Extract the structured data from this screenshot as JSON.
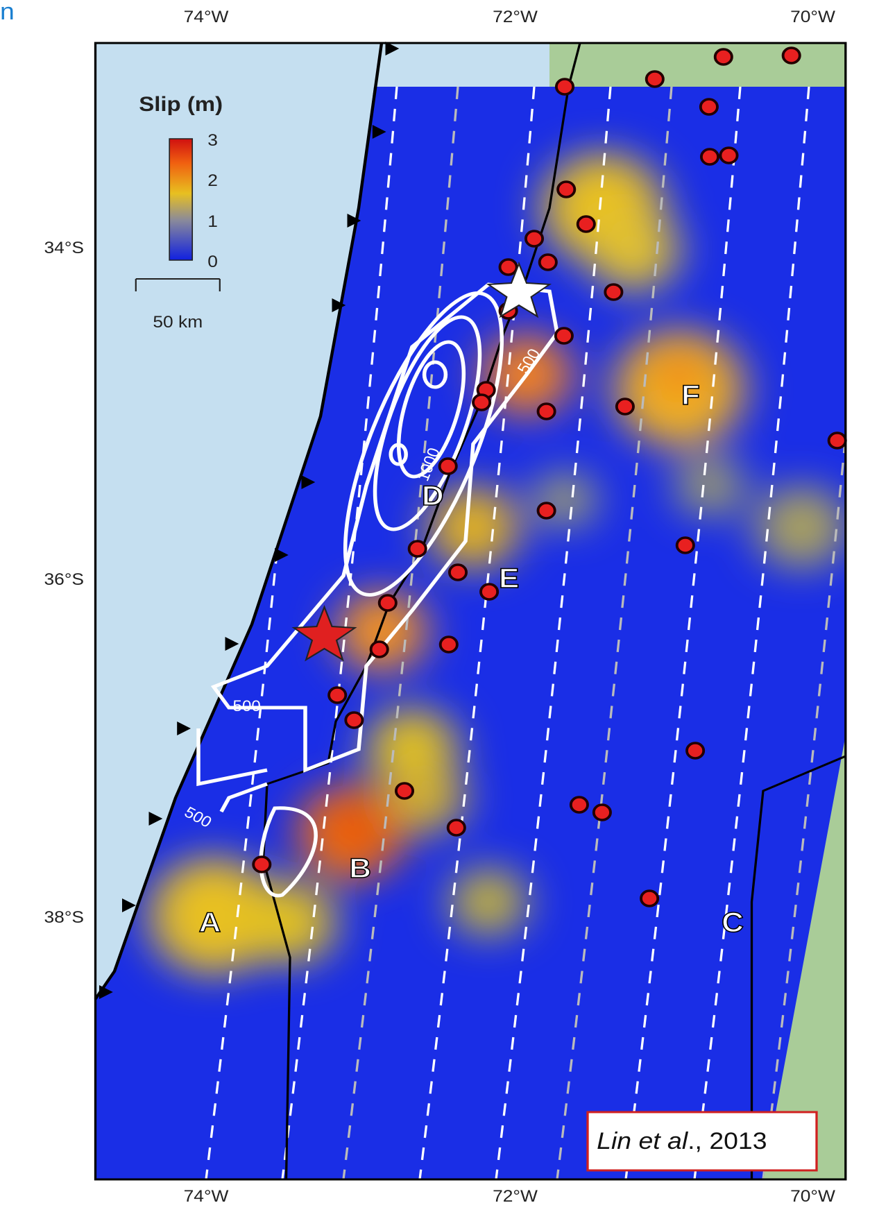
{
  "map": {
    "corner_text": "n",
    "x_labels_top": [
      "74°W",
      "72°W",
      "70°W"
    ],
    "x_labels_bottom": [
      "74°W",
      "72°W",
      "70°W"
    ],
    "y_labels": [
      "34°S",
      "36°S",
      "38°S"
    ],
    "legend": {
      "title": "Slip (m)",
      "ticks": [
        "3",
        "2",
        "1",
        "0"
      ]
    },
    "scale_bar": "50 km",
    "regions": [
      "A",
      "B",
      "C",
      "D",
      "E",
      "F"
    ],
    "contour_labels": [
      "500",
      "1000",
      "500",
      "500"
    ],
    "citation": {
      "authors": "Lin et al",
      "rest": "., 2013"
    }
  }
}
